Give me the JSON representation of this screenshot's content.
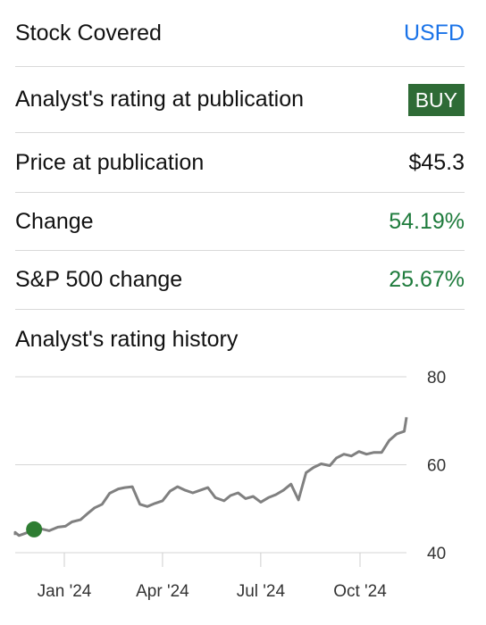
{
  "stock": {
    "label": "Stock Covered",
    "value": "USFD",
    "color": "#1a73e8"
  },
  "rating": {
    "label": "Analyst's rating at publication",
    "value": "BUY",
    "color": "#2e6b36"
  },
  "price": {
    "label": "Price at publication",
    "value": "$45.3"
  },
  "change": {
    "label": "Change",
    "value": "54.19%",
    "color": "#1e7b3c"
  },
  "sp500": {
    "label": "S&P 500 change",
    "value": "25.67%",
    "color": "#1e7b3c"
  },
  "history": {
    "title": "Analyst's rating history"
  },
  "chart_data": {
    "type": "line",
    "ylim": [
      40,
      80
    ],
    "y_ticks": [
      40,
      60,
      80
    ],
    "x_ticks": [
      {
        "label": "Jan '24",
        "date": "2024-01-01"
      },
      {
        "label": "Apr '24",
        "date": "2024-04-01"
      },
      {
        "label": "Jul '24",
        "date": "2024-07-01"
      },
      {
        "label": "Oct '24",
        "date": "2024-10-01"
      }
    ],
    "grid": true,
    "line_color": "#808080",
    "marker_color": "#2e7d32",
    "series": [
      {
        "x": [
          "2023-11-06",
          "2023-11-13",
          "2023-11-20",
          "2023-11-27",
          "2023-12-04",
          "2023-12-11",
          "2023-12-18",
          "2023-12-26",
          "2024-01-02",
          "2024-01-08",
          "2024-01-16",
          "2024-01-22",
          "2024-01-29",
          "2024-02-05",
          "2024-02-12",
          "2024-02-20",
          "2024-02-26",
          "2024-03-04",
          "2024-03-11",
          "2024-03-18",
          "2024-03-25",
          "2024-04-01",
          "2024-04-08",
          "2024-04-15",
          "2024-04-22",
          "2024-04-29",
          "2024-05-06",
          "2024-05-13",
          "2024-05-20",
          "2024-05-28",
          "2024-06-03",
          "2024-06-10",
          "2024-06-17",
          "2024-06-24",
          "2024-07-01",
          "2024-07-08",
          "2024-07-15",
          "2024-07-22",
          "2024-07-29",
          "2024-08-05",
          "2024-08-12",
          "2024-08-19",
          "2024-08-26",
          "2024-09-03",
          "2024-09-09",
          "2024-09-16",
          "2024-09-23",
          "2024-09-30",
          "2024-10-07",
          "2024-10-14",
          "2024-10-21",
          "2024-10-28",
          "2024-11-04",
          "2024-11-11",
          "2024-11-18"
        ],
        "y": [
          44.0,
          44.6,
          43.9,
          44.5,
          45.3,
          45.4,
          45.0,
          45.8,
          46.0,
          47.0,
          47.5,
          48.8,
          50.2,
          51.0,
          53.5,
          54.5,
          54.8,
          55.0,
          51.0,
          50.5,
          51.2,
          51.8,
          54.0,
          55.0,
          54.2,
          53.6,
          54.2,
          54.8,
          52.5,
          51.8,
          53.0,
          53.6,
          52.3,
          52.8,
          51.5,
          52.5,
          53.2,
          54.2,
          55.6,
          52.0,
          58.2,
          59.4,
          60.2,
          59.8,
          61.5,
          62.4,
          62.0,
          63.0,
          62.4,
          62.8,
          62.8,
          65.5,
          67.0,
          67.6,
          70.8
        ]
      }
    ],
    "marker": {
      "x": "2023-12-04",
      "y": 45.3
    }
  }
}
